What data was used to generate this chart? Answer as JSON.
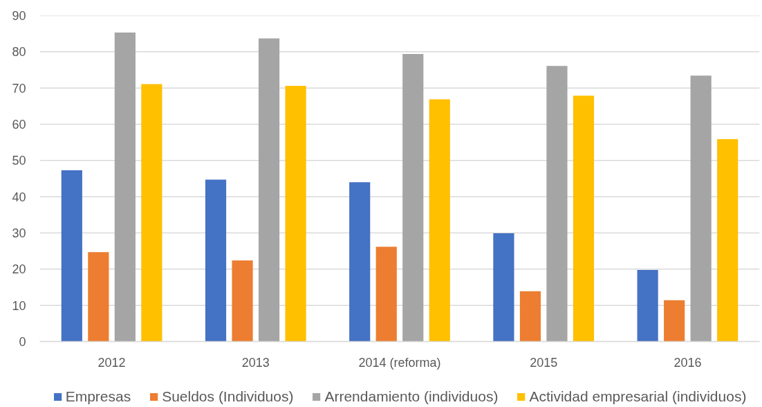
{
  "chart_data": {
    "type": "bar",
    "categories": [
      "2012",
      "2013",
      "2014 (reforma)",
      "2015",
      "2016"
    ],
    "series": [
      {
        "name": "Empresas",
        "color": "#4472c4",
        "values": [
          47.3,
          44.7,
          44.0,
          29.9,
          19.8
        ]
      },
      {
        "name": "Sueldos (Individuos)",
        "color": "#ed7d31",
        "values": [
          24.7,
          22.4,
          26.2,
          13.9,
          11.4
        ]
      },
      {
        "name": "Arrendamiento (individuos)",
        "color": "#a5a5a5",
        "values": [
          85.3,
          83.7,
          79.4,
          76.1,
          73.4
        ]
      },
      {
        "name": "Actividad empresarial (individuos)",
        "color": "#ffc000",
        "values": [
          71.1,
          70.6,
          66.9,
          67.9,
          55.9
        ]
      }
    ],
    "ylim": [
      0,
      90
    ],
    "yticks": [
      0,
      10,
      20,
      30,
      40,
      50,
      60,
      70,
      80,
      90
    ],
    "grid": "y",
    "legend": "bottom"
  }
}
